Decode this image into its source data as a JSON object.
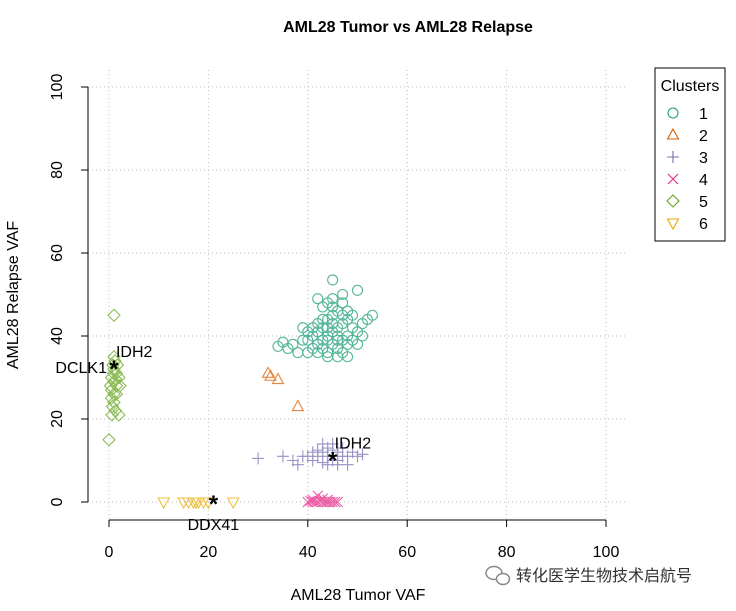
{
  "chart_data": {
    "type": "scatter",
    "title": "AML28 Tumor vs AML28 Relapse",
    "xlabel": "AML28 Tumor VAF",
    "ylabel": "AML28 Relapse VAF",
    "xlim": [
      0,
      100
    ],
    "ylim": [
      0,
      100
    ],
    "xticks": [
      "0",
      "20",
      "40",
      "60",
      "80",
      "100"
    ],
    "yticks": [
      "0",
      "20",
      "40",
      "60",
      "80",
      "100"
    ],
    "grid": true,
    "legend": {
      "title": "Clusters",
      "placement": "top-right outside"
    },
    "series": [
      {
        "name": "1",
        "color": "#1b9e77",
        "marker": "circle",
        "points": [
          [
            45,
            41
          ],
          [
            44,
            40
          ],
          [
            46,
            42
          ],
          [
            43,
            39
          ],
          [
            47,
            43
          ],
          [
            42,
            41
          ],
          [
            48,
            40
          ],
          [
            45,
            38
          ],
          [
            44,
            44
          ],
          [
            46,
            37
          ],
          [
            43,
            42
          ],
          [
            47,
            39
          ],
          [
            41,
            40
          ],
          [
            49,
            42
          ],
          [
            45,
            45
          ],
          [
            44,
            36
          ],
          [
            46,
            46
          ],
          [
            42,
            38
          ],
          [
            48,
            44
          ],
          [
            43,
            44
          ],
          [
            47,
            36
          ],
          [
            40,
            39
          ],
          [
            50,
            41
          ],
          [
            45,
            47
          ],
          [
            44,
            39
          ],
          [
            46,
            40
          ],
          [
            41,
            42
          ],
          [
            49,
            39
          ],
          [
            43,
            37
          ],
          [
            47,
            45
          ],
          [
            42,
            43
          ],
          [
            48,
            38
          ],
          [
            45,
            43
          ],
          [
            44,
            42
          ],
          [
            46,
            39
          ],
          [
            40,
            41
          ],
          [
            51,
            43
          ],
          [
            45,
            49
          ],
          [
            44,
            48
          ],
          [
            47,
            48
          ],
          [
            43,
            47
          ],
          [
            42,
            36
          ],
          [
            48,
            46
          ],
          [
            39,
            39
          ],
          [
            52,
            44
          ],
          [
            46,
            35
          ],
          [
            44,
            35
          ],
          [
            41,
            37
          ],
          [
            49,
            45
          ],
          [
            50,
            38
          ],
          [
            36,
            37
          ],
          [
            37,
            38
          ],
          [
            35,
            38.5
          ],
          [
            34,
            37.5
          ],
          [
            38,
            36
          ],
          [
            53,
            45
          ],
          [
            50,
            51
          ],
          [
            45,
            53.5
          ],
          [
            47,
            50
          ],
          [
            42,
            49
          ],
          [
            48,
            35
          ],
          [
            40,
            36
          ],
          [
            39,
            42
          ],
          [
            51,
            40
          ]
        ]
      },
      {
        "name": "2",
        "color": "#d95f02",
        "marker": "triangle",
        "points": [
          [
            32,
            31
          ],
          [
            32.5,
            30.3
          ],
          [
            34,
            29.5
          ],
          [
            38,
            23
          ]
        ]
      },
      {
        "name": "3",
        "color": "#7570b3",
        "marker": "plus",
        "points": [
          [
            44,
            11
          ],
          [
            43,
            12
          ],
          [
            45,
            10
          ],
          [
            42,
            11
          ],
          [
            46,
            12
          ],
          [
            41,
            10
          ],
          [
            47,
            11
          ],
          [
            44,
            13
          ],
          [
            43,
            9.5
          ],
          [
            45,
            12.5
          ],
          [
            42,
            12.5
          ],
          [
            46,
            10
          ],
          [
            48,
            11
          ],
          [
            40,
            11
          ],
          [
            44,
            9
          ],
          [
            47,
            13
          ],
          [
            41,
            12
          ],
          [
            49,
            12
          ],
          [
            39,
            11
          ],
          [
            46,
            9
          ],
          [
            38,
            9
          ],
          [
            50,
            11
          ],
          [
            30,
            10.5
          ],
          [
            35,
            11
          ],
          [
            37,
            10
          ],
          [
            51,
            11.5
          ],
          [
            48,
            9
          ],
          [
            43,
            14
          ],
          [
            45,
            14
          ]
        ]
      },
      {
        "name": "4",
        "color": "#e7298a",
        "marker": "cross",
        "points": [
          [
            40,
            0
          ],
          [
            40.5,
            0.3
          ],
          [
            41,
            0
          ],
          [
            41.5,
            0
          ],
          [
            42,
            0
          ],
          [
            42.5,
            0.2
          ],
          [
            43,
            0
          ],
          [
            43.5,
            0
          ],
          [
            44,
            0
          ],
          [
            44.5,
            0
          ],
          [
            45,
            0
          ],
          [
            45.5,
            0
          ],
          [
            46,
            0
          ],
          [
            42,
            1.5
          ],
          [
            43,
            0.8
          ],
          [
            41,
            0.5
          ],
          [
            44,
            0.5
          ]
        ]
      },
      {
        "name": "5",
        "color": "#66a61e",
        "marker": "diamond",
        "points": [
          [
            1,
            32
          ],
          [
            0.5,
            30
          ],
          [
            1.5,
            28
          ],
          [
            1,
            26
          ],
          [
            0.5,
            27
          ],
          [
            1,
            29
          ],
          [
            1.5,
            31
          ],
          [
            0.8,
            33
          ],
          [
            1.2,
            34
          ],
          [
            0.5,
            25
          ],
          [
            1,
            24
          ],
          [
            1.5,
            26
          ],
          [
            2,
            30
          ],
          [
            0.3,
            28
          ],
          [
            1,
            35
          ],
          [
            1.7,
            33
          ],
          [
            0.7,
            23
          ],
          [
            1.3,
            22
          ],
          [
            0.6,
            21
          ],
          [
            2,
            21
          ],
          [
            1,
            45
          ],
          [
            0,
            15
          ],
          [
            0.9,
            31
          ],
          [
            1.4,
            29.5
          ],
          [
            2.2,
            28
          ]
        ]
      },
      {
        "name": "6",
        "color": "#e6ab02",
        "marker": "triangle-down",
        "points": [
          [
            11,
            0
          ],
          [
            15,
            0
          ],
          [
            16,
            0
          ],
          [
            17,
            0
          ],
          [
            17.5,
            0
          ],
          [
            18,
            0
          ],
          [
            19,
            0
          ],
          [
            20,
            0
          ],
          [
            25,
            0
          ]
        ]
      }
    ],
    "annotations": [
      {
        "x": 1,
        "y": 32.5,
        "labels": [
          {
            "text": "IDH2",
            "pos": "above-right"
          },
          {
            "text": "DCLK1",
            "pos": "left"
          }
        ]
      },
      {
        "x": 45,
        "y": 10.5,
        "labels": [
          {
            "text": "IDH2",
            "pos": "above-right"
          }
        ]
      },
      {
        "x": 21,
        "y": 0,
        "labels": [
          {
            "text": "DDX41",
            "pos": "below"
          }
        ]
      }
    ]
  },
  "watermark": {
    "text": "转化医学生物技术启航号",
    "icon": "wechat-icon"
  }
}
